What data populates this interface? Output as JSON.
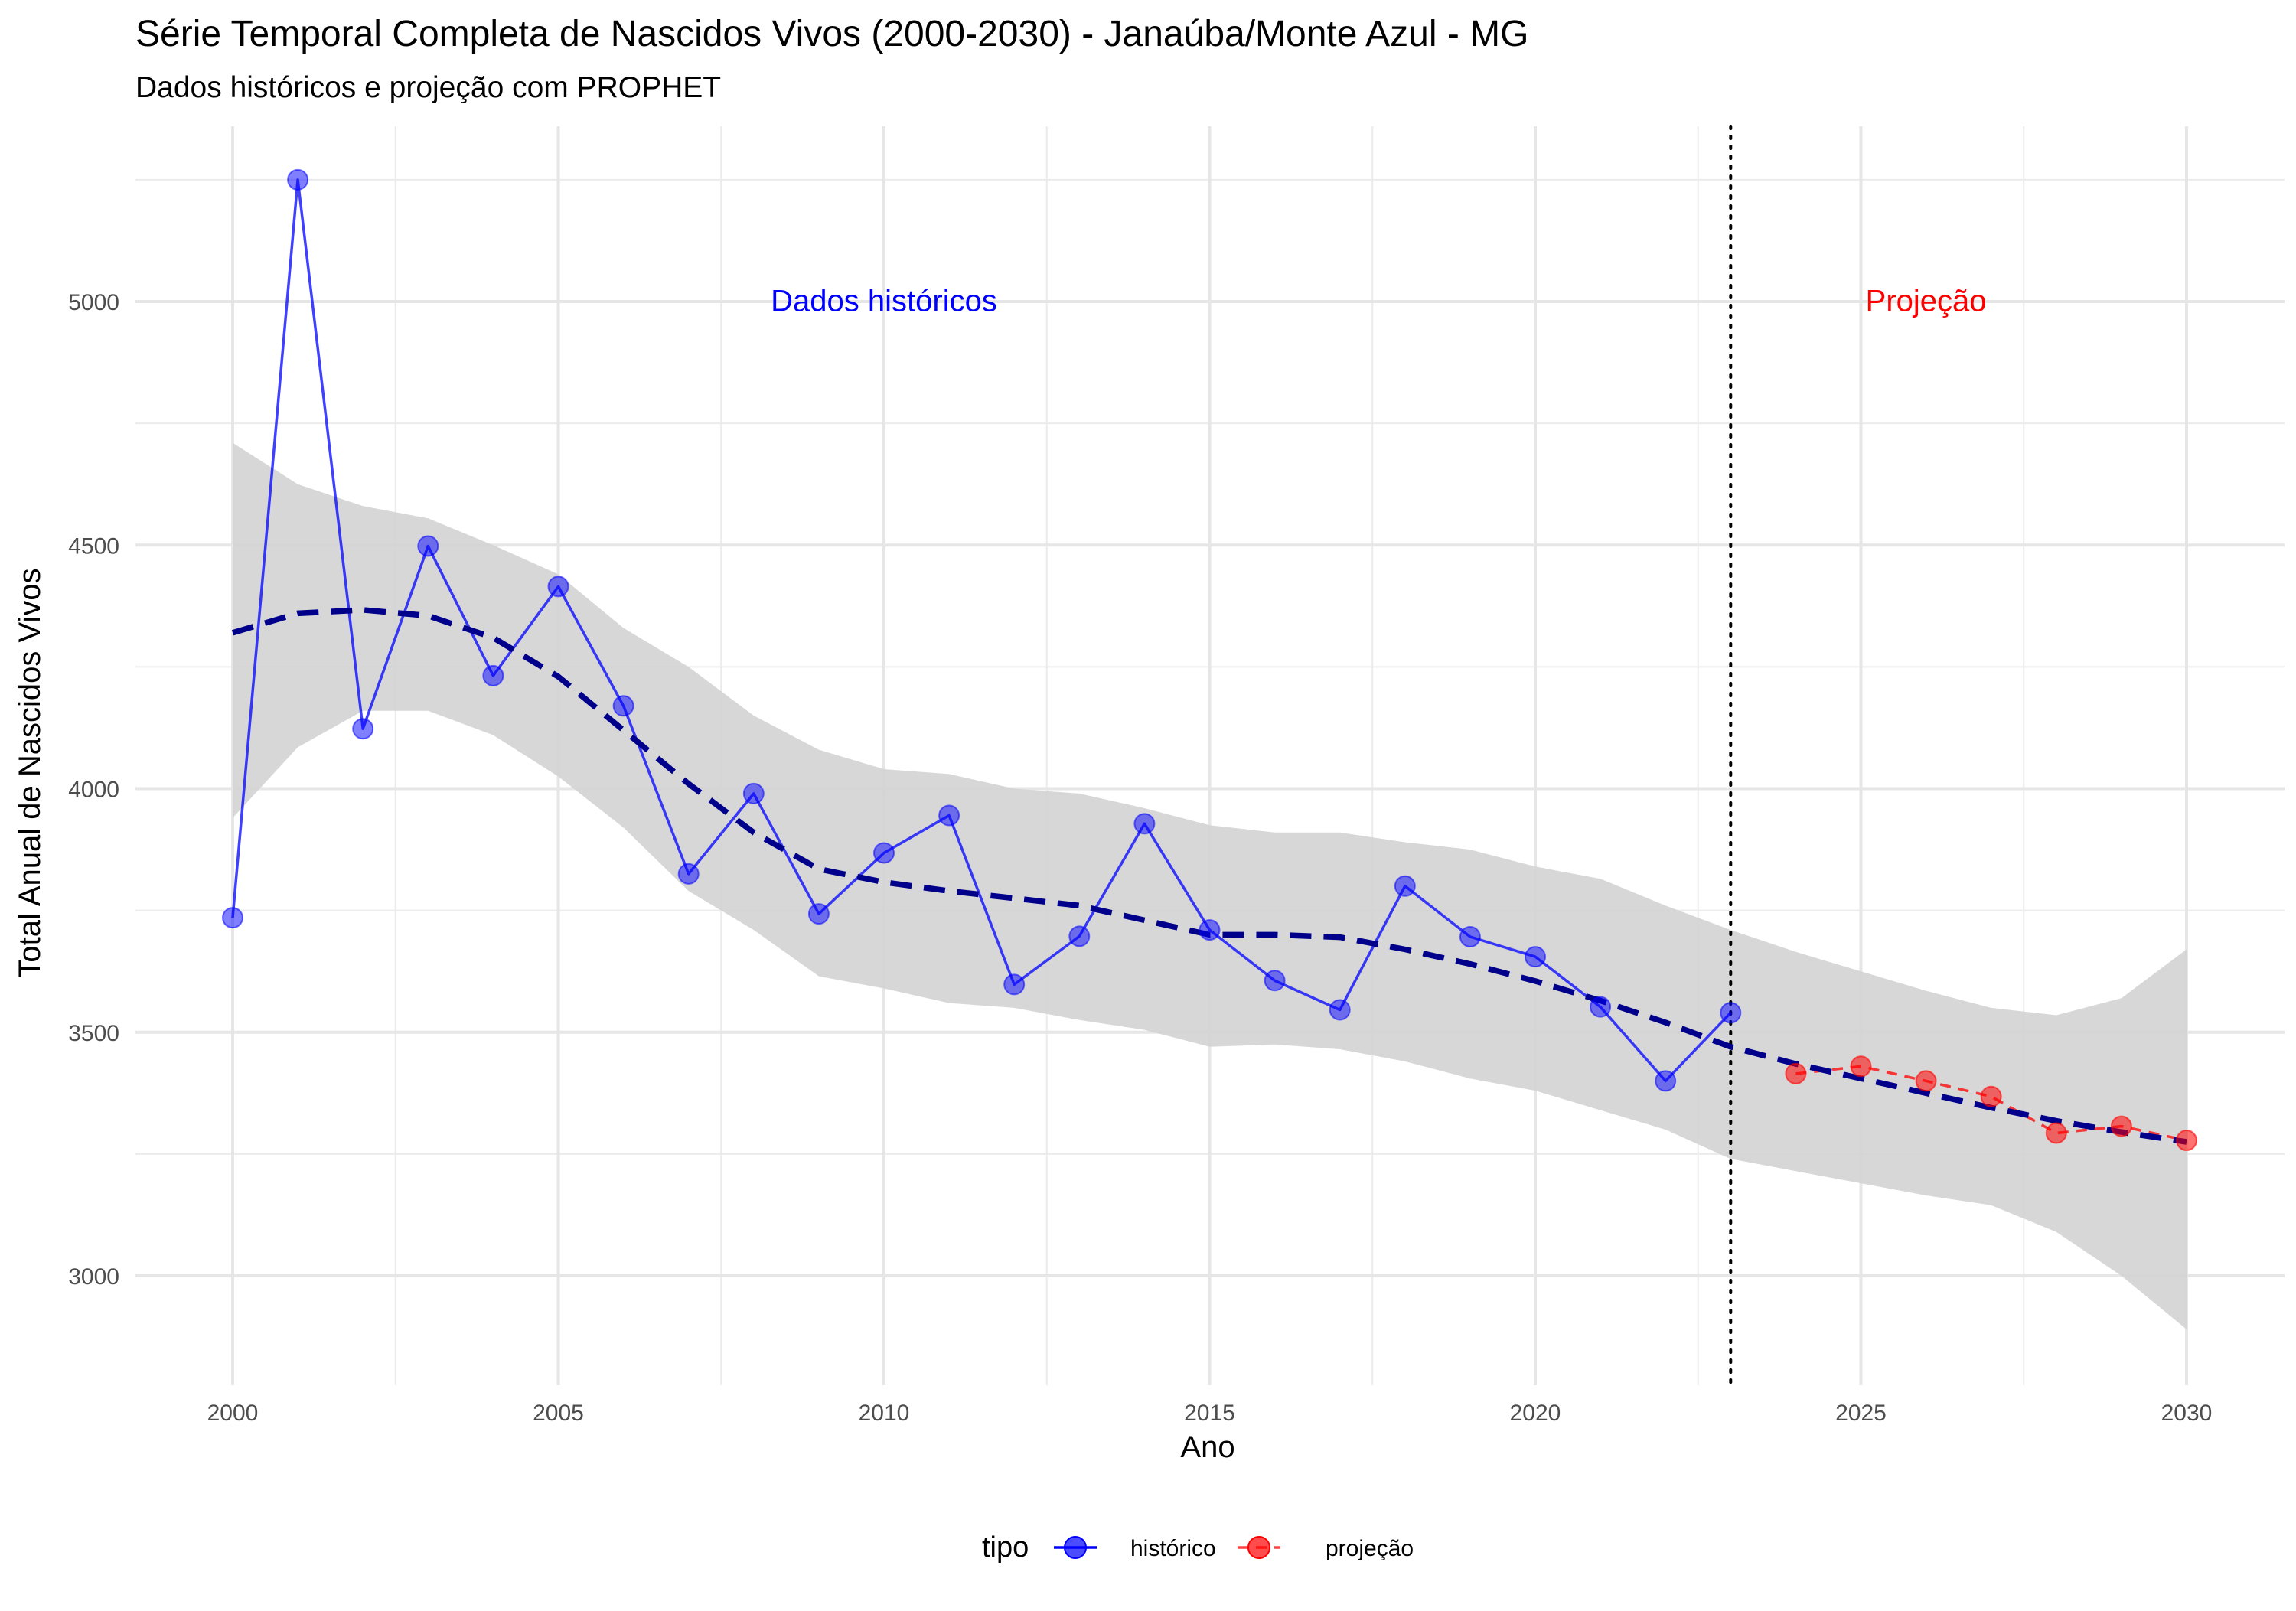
{
  "chart_data": {
    "type": "line",
    "title": "Série Temporal Completa de Nascidos Vivos (2000-2030) -  Janaúba/Monte Azul - MG",
    "subtitle": "Dados históricos e projeção com PROPHET",
    "xlabel": "Ano",
    "ylabel": "Total Anual de Nascidos Vivos",
    "xlim": [
      1998.5,
      2031.5
    ],
    "ylim": [
      2800,
      5300
    ],
    "x_ticks": [
      2000,
      2005,
      2010,
      2015,
      2020,
      2025,
      2030
    ],
    "x_tick_labels": [
      "2000",
      "2005",
      "2010",
      "2015",
      "2020",
      "2025",
      "2030"
    ],
    "x_minor_ticks": [
      2002.5,
      2007.5,
      2012.5,
      2017.5,
      2022.5,
      2027.5
    ],
    "y_ticks": [
      3000,
      3500,
      4000,
      4500,
      5000
    ],
    "y_tick_labels": [
      "3000",
      "3500",
      "4000",
      "4500",
      "5000"
    ],
    "y_minor_ticks": [
      3250,
      3750,
      4250,
      4750,
      5250
    ],
    "grid": true,
    "split_year": 2023,
    "annotations": [
      {
        "text": "Dados históricos",
        "x": 2010,
        "y": 4980,
        "color": "#0000ff"
      },
      {
        "text": "Projeção",
        "x": 2026,
        "y": 4980,
        "color": "#ff0000"
      }
    ],
    "legend": {
      "title": "tipo",
      "position": "bottom",
      "entries": [
        {
          "label": "histórico",
          "color": "#0000ff"
        },
        {
          "label": "projeção",
          "color": "#ff0000"
        }
      ]
    },
    "series": [
      {
        "name": "histórico",
        "color": "#0000ff",
        "style": "solid",
        "x": [
          2000,
          2001,
          2002,
          2003,
          2004,
          2005,
          2006,
          2007,
          2008,
          2009,
          2010,
          2011,
          2012,
          2013,
          2014,
          2015,
          2016,
          2017,
          2018,
          2019,
          2020,
          2021,
          2022,
          2023
        ],
        "y": [
          3735,
          5250,
          4123,
          4498,
          4232,
          4415,
          4170,
          3825,
          3990,
          3743,
          3868,
          3945,
          3598,
          3697,
          3928,
          3710,
          3606,
          3546,
          3800,
          3696,
          3655,
          3552,
          3400,
          3540
        ]
      },
      {
        "name": "projeção",
        "color": "#ff0000",
        "style": "dashed",
        "x": [
          2024,
          2025,
          2026,
          2027,
          2028,
          2029,
          2030
        ],
        "y": [
          3415,
          3430,
          3400,
          3368,
          3293,
          3307,
          3278
        ]
      }
    ],
    "trend": {
      "color": "#00008b",
      "style": "dashed",
      "x": [
        2000,
        2001,
        2002,
        2003,
        2004,
        2005,
        2006,
        2007,
        2008,
        2009,
        2010,
        2011,
        2012,
        2013,
        2014,
        2015,
        2016,
        2017,
        2018,
        2019,
        2020,
        2021,
        2022,
        2023,
        2024,
        2025,
        2026,
        2027,
        2028,
        2029,
        2030
      ],
      "y": [
        4320,
        4360,
        4367,
        4355,
        4310,
        4230,
        4120,
        4010,
        3910,
        3835,
        3808,
        3790,
        3775,
        3760,
        3730,
        3700,
        3700,
        3695,
        3670,
        3640,
        3605,
        3565,
        3520,
        3470,
        3435,
        3405,
        3375,
        3345,
        3318,
        3295,
        3275
      ]
    },
    "band": {
      "color": "#d3d3d3",
      "x": [
        2000,
        2001,
        2002,
        2003,
        2004,
        2005,
        2006,
        2007,
        2008,
        2009,
        2010,
        2011,
        2012,
        2013,
        2014,
        2015,
        2016,
        2017,
        2018,
        2019,
        2020,
        2021,
        2022,
        2023,
        2024,
        2025,
        2026,
        2027,
        2028,
        2029,
        2030
      ],
      "upper": [
        4710,
        4625,
        4580,
        4555,
        4500,
        4440,
        4330,
        4250,
        4150,
        4080,
        4040,
        4030,
        4000,
        3990,
        3960,
        3925,
        3910,
        3910,
        3890,
        3875,
        3840,
        3815,
        3760,
        3710,
        3665,
        3625,
        3585,
        3550,
        3535,
        3570,
        3670
      ],
      "lower": [
        3940,
        4085,
        4160,
        4160,
        4110,
        4025,
        3920,
        3790,
        3710,
        3615,
        3590,
        3560,
        3550,
        3525,
        3505,
        3470,
        3475,
        3465,
        3440,
        3405,
        3380,
        3340,
        3300,
        3240,
        3215,
        3190,
        3165,
        3145,
        3090,
        3000,
        2890
      ]
    }
  }
}
